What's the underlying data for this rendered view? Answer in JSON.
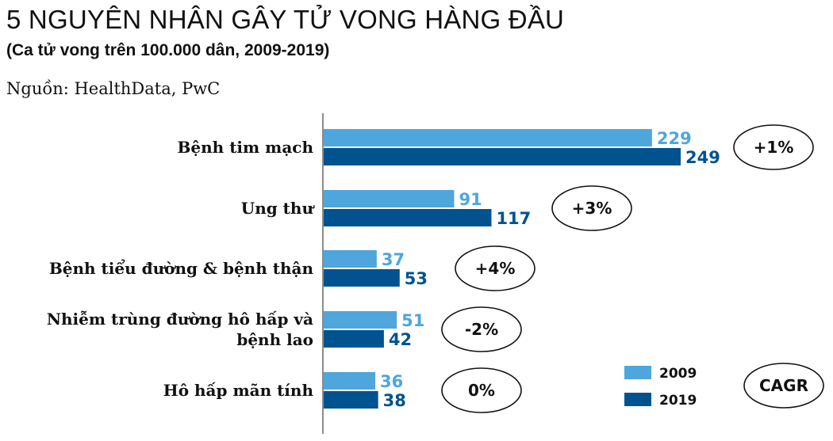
{
  "header": {
    "title": "5 NGUYÊN NHÂN GÂY TỬ VONG HÀNG ĐẦU",
    "subtitle": "(Ca tử vong trên 100.000 dân, 2009-2019)",
    "source": "Nguồn: HealthData, PwC"
  },
  "chart_data": {
    "type": "bar",
    "orientation": "horizontal",
    "categories": [
      [
        "Bệnh tim mạch"
      ],
      [
        "Ung thư"
      ],
      [
        "Bệnh tiểu đường & bệnh thận"
      ],
      [
        "Nhiễm trùng đường hô hấp và",
        "bệnh lao"
      ],
      [
        "Hô hấp mãn tính"
      ]
    ],
    "series": [
      {
        "name": "2009",
        "color": "#4ea6dc",
        "values": [
          229,
          91,
          37,
          51,
          36
        ]
      },
      {
        "name": "2019",
        "color": "#00538f",
        "values": [
          249,
          117,
          53,
          42,
          38
        ]
      }
    ],
    "cagr": {
      "label": "CAGR",
      "values": [
        "+1%",
        "+3%",
        "+4%",
        "-2%",
        "0%"
      ]
    },
    "xlim": [
      0,
      249
    ],
    "legend_position": "bottom-right",
    "grid": false
  }
}
